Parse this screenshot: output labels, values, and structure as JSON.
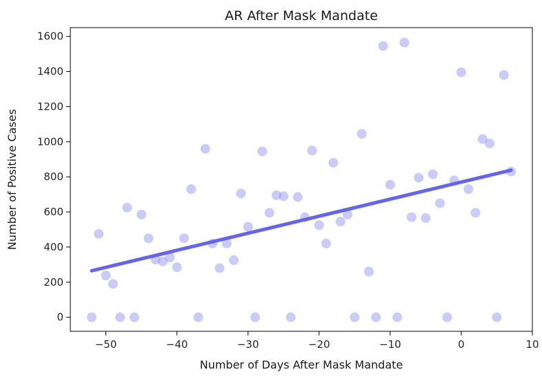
{
  "chart_data": {
    "type": "scatter",
    "title": "AR After Mask Mandate",
    "xlabel": "Number of Days After Mask Mandate",
    "ylabel": "Number of Positive Cases",
    "xlim": [
      -55,
      10
    ],
    "ylim": [
      -80,
      1650
    ],
    "xticks": [
      -50,
      -40,
      -30,
      -20,
      -10,
      0,
      10
    ],
    "yticks": [
      0,
      200,
      400,
      600,
      800,
      1000,
      1200,
      1400,
      1600
    ],
    "xtick_labels": [
      "−50",
      "−40",
      "−30",
      "−20",
      "−10",
      "0",
      "10"
    ],
    "ytick_labels": [
      "0",
      "200",
      "400",
      "600",
      "800",
      "1000",
      "1200",
      "1400",
      "1600"
    ],
    "grid": false,
    "point_color": "#8c8cf2",
    "line_color": "#6464f0",
    "points": [
      {
        "x": -52,
        "y": 0
      },
      {
        "x": -51,
        "y": 475
      },
      {
        "x": -50,
        "y": 238
      },
      {
        "x": -49,
        "y": 190
      },
      {
        "x": -48,
        "y": 0
      },
      {
        "x": -47,
        "y": 625
      },
      {
        "x": -46,
        "y": 0
      },
      {
        "x": -45,
        "y": 585
      },
      {
        "x": -44,
        "y": 450
      },
      {
        "x": -43,
        "y": 328
      },
      {
        "x": -42,
        "y": 318
      },
      {
        "x": -41,
        "y": 340
      },
      {
        "x": -40,
        "y": 285
      },
      {
        "x": -39,
        "y": 450
      },
      {
        "x": -38,
        "y": 730
      },
      {
        "x": -37,
        "y": 0
      },
      {
        "x": -36,
        "y": 960
      },
      {
        "x": -35,
        "y": 420
      },
      {
        "x": -34,
        "y": 280
      },
      {
        "x": -33,
        "y": 420
      },
      {
        "x": -32,
        "y": 325
      },
      {
        "x": -31,
        "y": 705
      },
      {
        "x": -30,
        "y": 515
      },
      {
        "x": -29,
        "y": 0
      },
      {
        "x": -28,
        "y": 945
      },
      {
        "x": -27,
        "y": 595
      },
      {
        "x": -26,
        "y": 695
      },
      {
        "x": -25,
        "y": 690
      },
      {
        "x": -24,
        "y": 0
      },
      {
        "x": -23,
        "y": 685
      },
      {
        "x": -22,
        "y": 570
      },
      {
        "x": -21,
        "y": 950
      },
      {
        "x": -20,
        "y": 525
      },
      {
        "x": -19,
        "y": 420
      },
      {
        "x": -18,
        "y": 880
      },
      {
        "x": -17,
        "y": 545
      },
      {
        "x": -16,
        "y": 585
      },
      {
        "x": -15,
        "y": 0
      },
      {
        "x": -14,
        "y": 1045
      },
      {
        "x": -13,
        "y": 260
      },
      {
        "x": -12,
        "y": 0
      },
      {
        "x": -11,
        "y": 1545
      },
      {
        "x": -10,
        "y": 755
      },
      {
        "x": -9,
        "y": 0
      },
      {
        "x": -8,
        "y": 1565
      },
      {
        "x": -7,
        "y": 570
      },
      {
        "x": -6,
        "y": 795
      },
      {
        "x": -5,
        "y": 565
      },
      {
        "x": -4,
        "y": 815
      },
      {
        "x": -3,
        "y": 650
      },
      {
        "x": -2,
        "y": 0
      },
      {
        "x": -1,
        "y": 780
      },
      {
        "x": 0,
        "y": 1395
      },
      {
        "x": 1,
        "y": 730
      },
      {
        "x": 2,
        "y": 595
      },
      {
        "x": 3,
        "y": 1015
      },
      {
        "x": 4,
        "y": 990
      },
      {
        "x": 5,
        "y": 0
      },
      {
        "x": 6,
        "y": 1380
      },
      {
        "x": 7,
        "y": 830
      }
    ],
    "trend_line": {
      "x": [
        -52,
        7
      ],
      "y": [
        265,
        838
      ]
    }
  }
}
